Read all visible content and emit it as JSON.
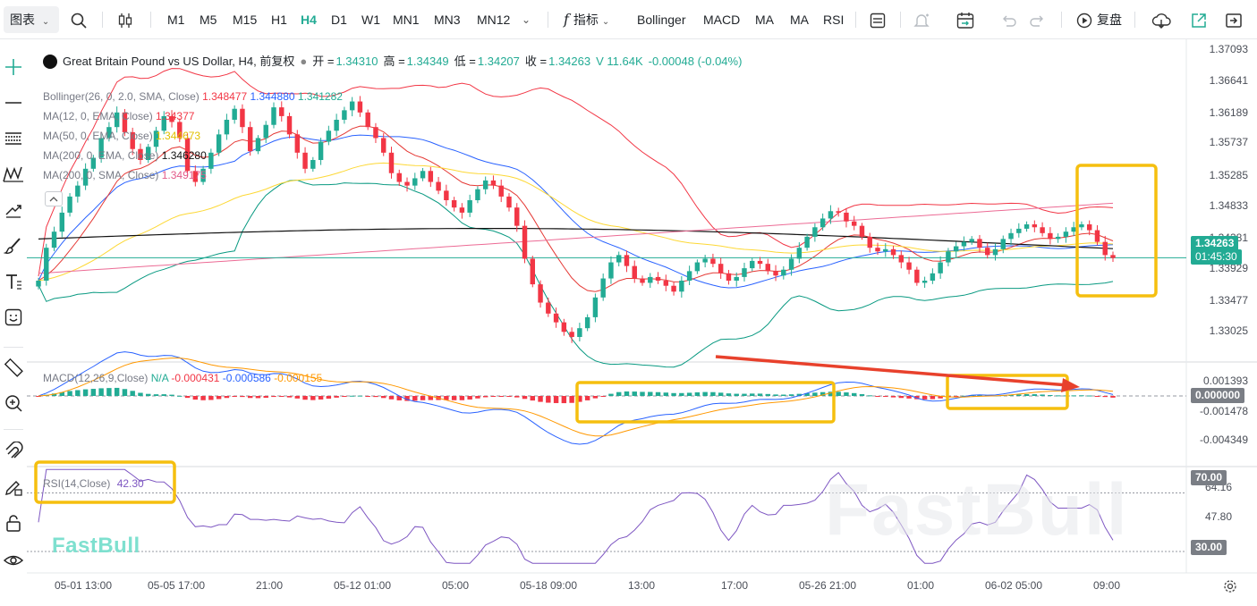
{
  "toolbar": {
    "chart_menu": "图表",
    "timeframes": [
      "M1",
      "M5",
      "M15",
      "H1",
      "H4",
      "D1",
      "W1",
      "MN1",
      "MN3",
      "MN12"
    ],
    "active_timeframe": "H4",
    "indicators_label": "指标",
    "indicator_buttons": [
      "Bollinger",
      "MACD",
      "MA",
      "MA",
      "RSI"
    ],
    "replay_label": "复盘"
  },
  "symbol": {
    "name": "Great Britain Pound vs US Dollar, H4, 前复权",
    "open_label": "开 =",
    "open": "1.34310",
    "high_label": "高 =",
    "high": "1.34349",
    "low_label": "低 =",
    "low": "1.34207",
    "close_label": "收 =",
    "close": "1.34263",
    "volume": "V 11.64K",
    "change": "-0.00048 (-0.04%)"
  },
  "indicators": {
    "bollinger": {
      "label": "Bollinger(26, 0, 2.0, SMA, Close)",
      "v1": "1.348477",
      "v2": "1.344880",
      "v3": "1.341282"
    },
    "ma1": {
      "label": "MA(12, 0, EMA, Close)",
      "value": "1.34377"
    },
    "ma2": {
      "label": "MA(50, 0, EMA, Close)",
      "value": "1.344673"
    },
    "ma3": {
      "label": "MA(200, 0, EMA, Close)",
      "value": "1.346280"
    },
    "ma4": {
      "label": "MA(200, 0, SMA, Close)",
      "value": "1.349175"
    },
    "macd": {
      "label": "MACD(12,26,9,Close)",
      "na": "N/A",
      "v1": "-0.000431",
      "v2": "-0.000586",
      "v3": "-0.000155"
    },
    "rsi": {
      "label": "RSI(14,Close)",
      "value": "42.30"
    }
  },
  "price_axis": [
    "1.37093",
    "1.36641",
    "1.36189",
    "1.35737",
    "1.35285",
    "1.34833",
    "1.34381",
    "1.33929",
    "1.33477",
    "1.33025"
  ],
  "macd_axis": [
    "0.001393",
    "-0.001478",
    "-0.004349"
  ],
  "rsi_axis": [
    "64.16",
    "47.80"
  ],
  "tags": {
    "last_price": "1.34263",
    "countdown": "01:45:30",
    "macd_zero": "0.000000",
    "rsi_high": "70.00",
    "rsi_low": "30.00"
  },
  "time_axis": [
    "05-01 13:00",
    "05-05 17:00",
    "21:00",
    "05-12 01:00",
    "05:00",
    "05-18 09:00",
    "13:00",
    "17:00",
    "05-26 21:00",
    "01:00",
    "06-02 05:00",
    "09:00"
  ],
  "watermark": "FastBull",
  "colors": {
    "up": "#22ab94",
    "down": "#f23645",
    "highlight": "#f5bf0f",
    "arrow": "#e8412c"
  },
  "chart_data": {
    "type": "candlestick",
    "series": [
      {
        "name": "Great Britain Pound vs US Dollar",
        "close": [
          1.3395,
          1.344,
          1.3462,
          1.3488,
          1.351,
          1.3525,
          1.3548,
          1.3563,
          1.359,
          1.3605,
          1.3625,
          1.3598,
          1.3575,
          1.356,
          1.3578,
          1.36,
          1.362,
          1.3612,
          1.359,
          1.3545,
          1.353,
          1.3548,
          1.357,
          1.3595,
          1.3615,
          1.363,
          1.3605,
          1.3572,
          1.359,
          1.3608,
          1.3632,
          1.362,
          1.3595,
          1.357,
          1.3548,
          1.356,
          1.3585,
          1.36,
          1.3615,
          1.3628,
          1.364,
          1.3625,
          1.3605,
          1.359,
          1.357,
          1.3542,
          1.353,
          1.3525,
          1.3535,
          1.3545,
          1.353,
          1.3518,
          1.3505,
          1.3495,
          1.3488,
          1.3505,
          1.352,
          1.3532,
          1.3525,
          1.351,
          1.3495,
          1.347,
          1.3425,
          1.339,
          1.3365,
          1.335,
          1.3338,
          1.3325,
          1.3318,
          1.333,
          1.3345,
          1.3372,
          1.3398,
          1.342,
          1.343,
          1.3415,
          1.3398,
          1.3392,
          1.34,
          1.3395,
          1.3388,
          1.338,
          1.3395,
          1.3408,
          1.342,
          1.3425,
          1.3418,
          1.3405,
          1.3395,
          1.34,
          1.3412,
          1.3422,
          1.3418,
          1.3408,
          1.3402,
          1.341,
          1.3425,
          1.344,
          1.3455,
          1.3468,
          1.348,
          1.349,
          1.3488,
          1.3476,
          1.347,
          1.3455,
          1.344,
          1.3435,
          1.3438,
          1.343,
          1.342,
          1.341,
          1.3392,
          1.3395,
          1.3405,
          1.342,
          1.3435,
          1.3442,
          1.3448,
          1.3452,
          1.344,
          1.343,
          1.3438,
          1.3452,
          1.346,
          1.3466,
          1.3472,
          1.3468,
          1.346,
          1.3452,
          1.3455,
          1.3462,
          1.3468,
          1.3472,
          1.3464,
          1.3448,
          1.343,
          1.3426
        ]
      }
    ],
    "ylim": [
      1.3285,
      1.3725
    ]
  }
}
